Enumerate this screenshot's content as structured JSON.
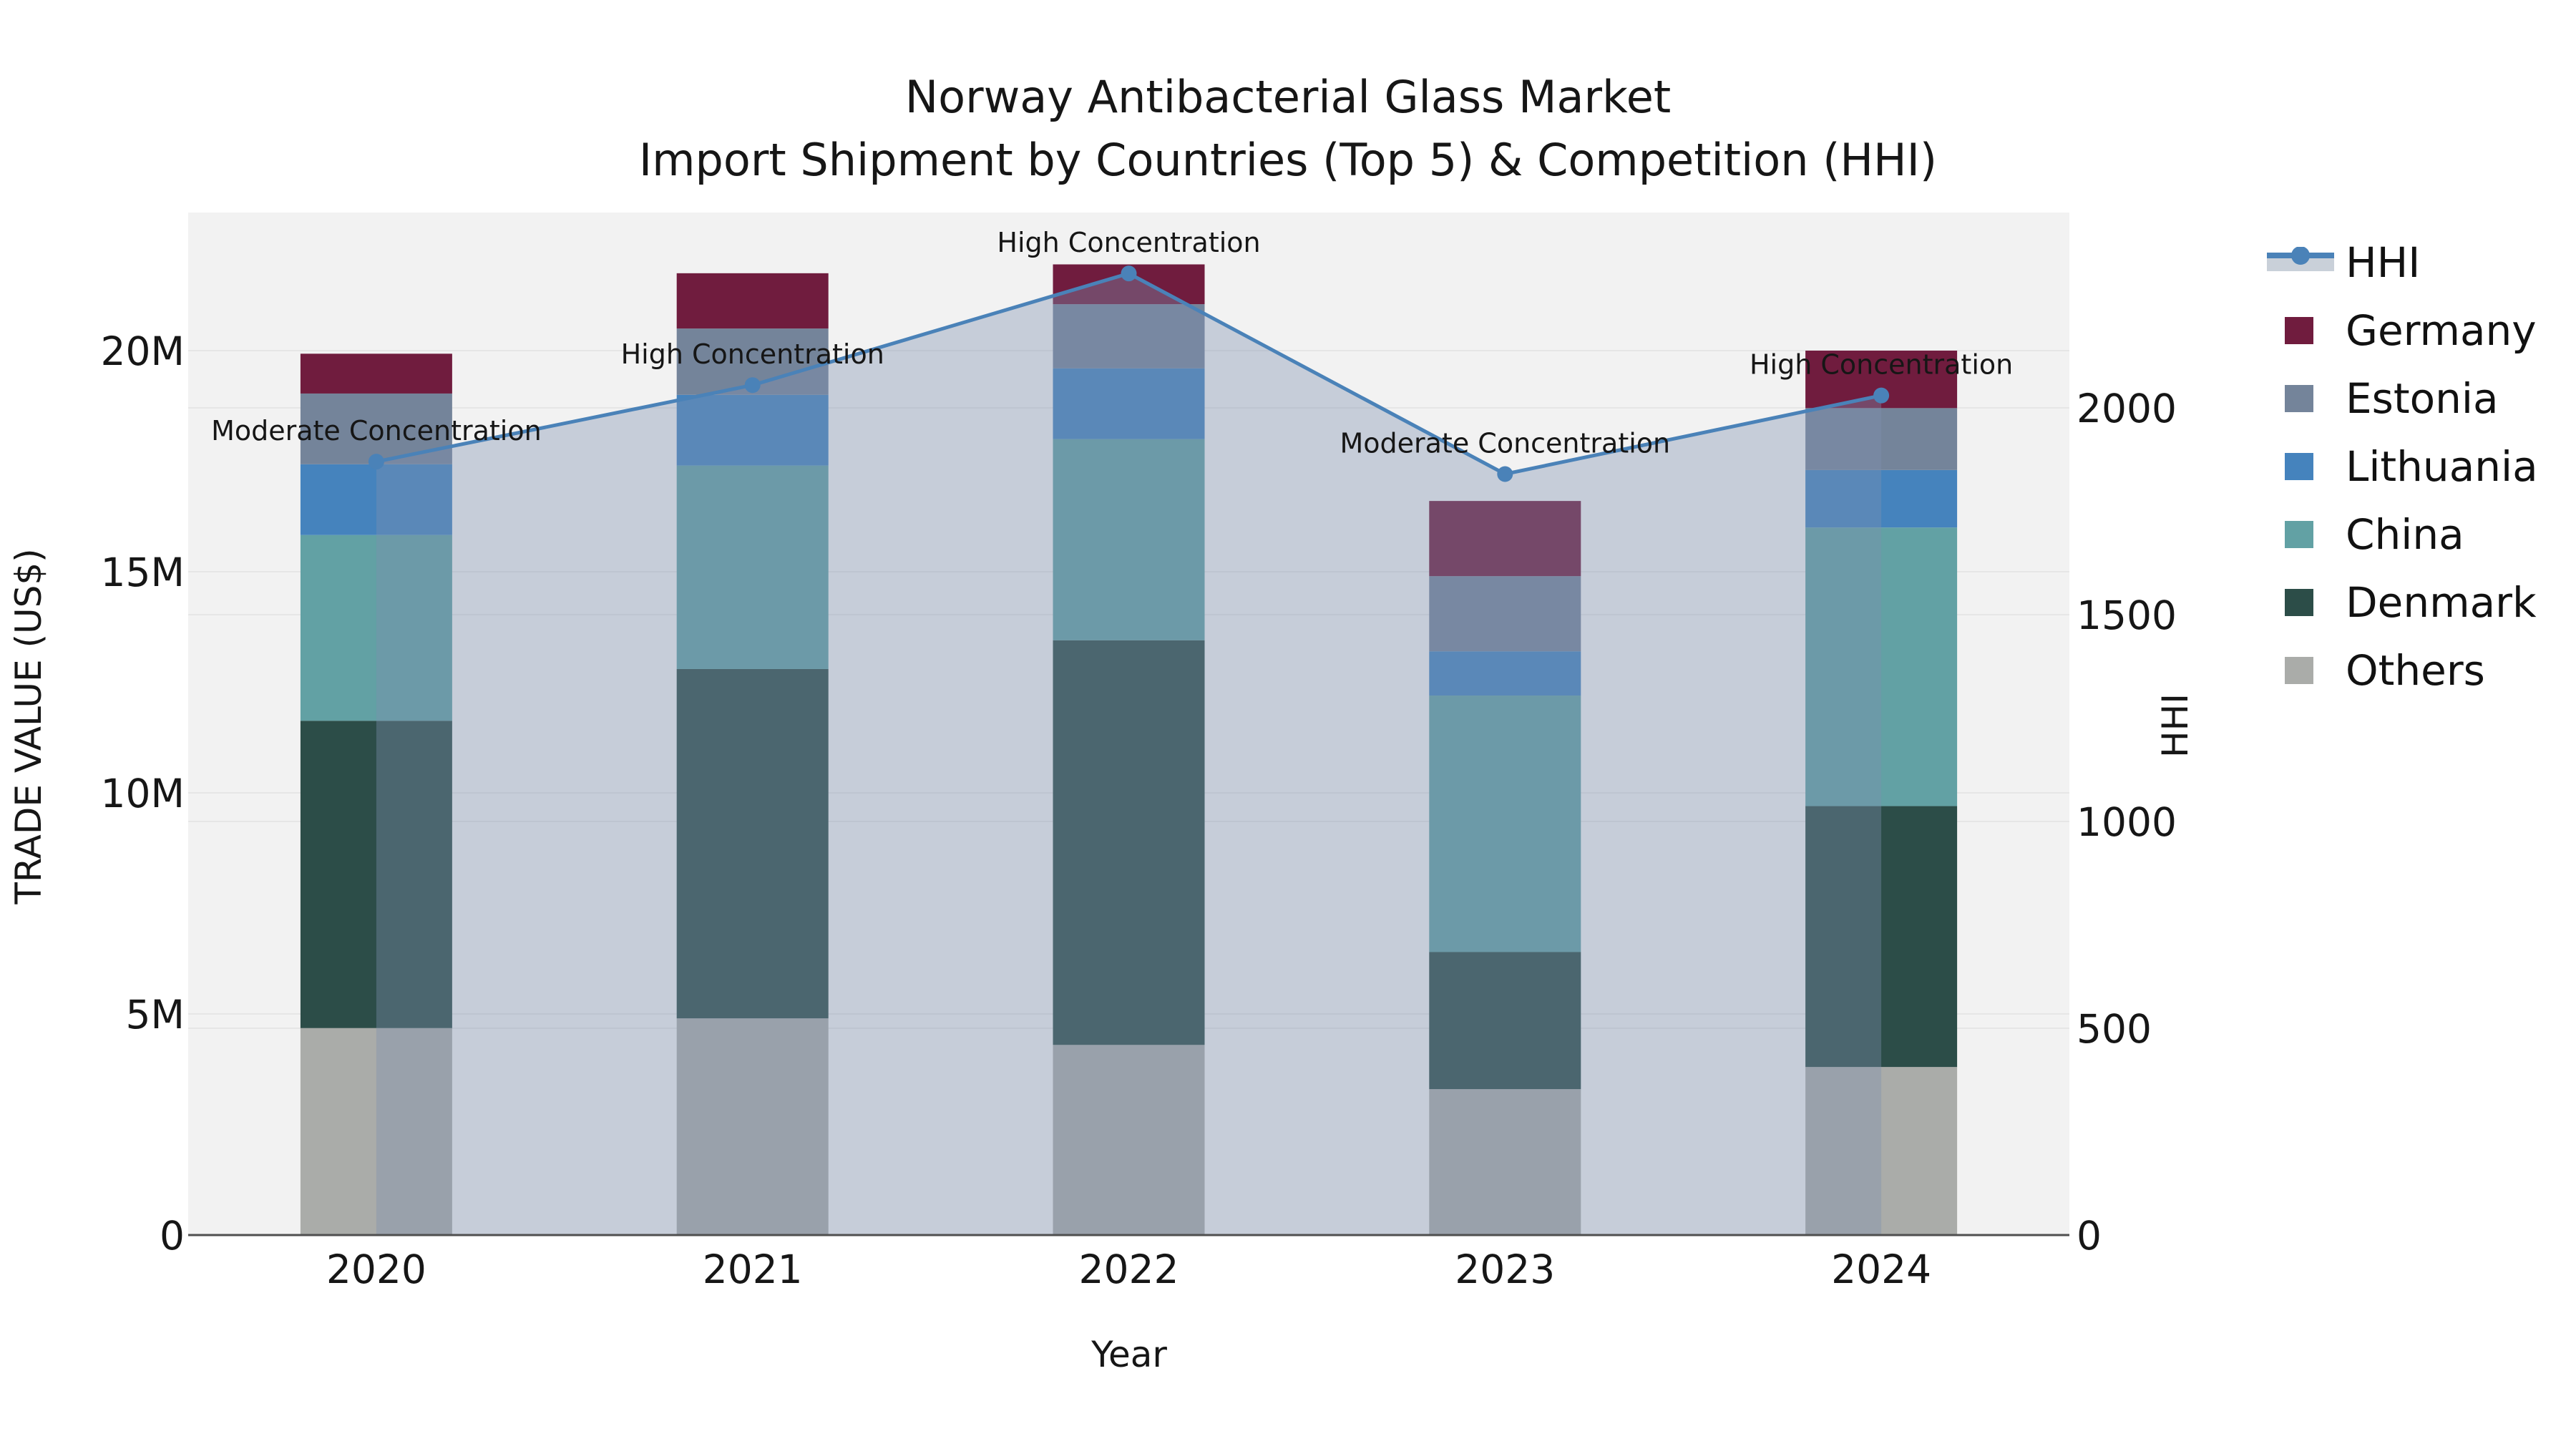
{
  "title": {
    "line1": "Norway Antibacterial Glass Market",
    "line2": "Import Shipment by Countries (Top 5) & Competition (HHI)"
  },
  "axes": {
    "left": {
      "title": "TRADE VALUE (US$)",
      "tick_values": [
        0,
        5,
        10,
        15,
        20
      ],
      "tick_labels": [
        "0",
        "5M",
        "10M",
        "15M",
        "20M"
      ],
      "unit": "million US$"
    },
    "right": {
      "title": "HHI",
      "tick_values": [
        0,
        500,
        1000,
        1500,
        2000
      ],
      "tick_labels": [
        "0",
        "500",
        "1000",
        "1500",
        "2000"
      ]
    },
    "x": {
      "title": "Year",
      "categories": [
        "2020",
        "2021",
        "2022",
        "2023",
        "2024"
      ]
    }
  },
  "legend": {
    "items": [
      {
        "label": "HHI",
        "type": "line",
        "color": "#4A82B8"
      },
      {
        "label": "Germany",
        "type": "box",
        "color": "#701C3E"
      },
      {
        "label": "Estonia",
        "type": "box",
        "color": "#74849A"
      },
      {
        "label": "Lithuania",
        "type": "box",
        "color": "#4583BD"
      },
      {
        "label": "China",
        "type": "box",
        "color": "#62A1A4"
      },
      {
        "label": "Denmark",
        "type": "box",
        "color": "#2C4D48"
      },
      {
        "label": "Others",
        "type": "box",
        "color": "#AAACA9"
      }
    ]
  },
  "chart_data": {
    "type": "bar+line",
    "title": "Norway Antibacterial Glass Market — Import Shipment by Countries (Top 5) & Competition (HHI)",
    "xlabel": "Year",
    "ylabel_left": "TRADE VALUE (US$)",
    "ylabel_right": "HHI",
    "categories": [
      "2020",
      "2021",
      "2022",
      "2023",
      "2024"
    ],
    "bar_unit": "million US$",
    "stacked": true,
    "stack_order_bottom_to_top": [
      "Others",
      "Denmark",
      "China",
      "Lithuania",
      "Estonia",
      "Germany"
    ],
    "series": [
      {
        "name": "Others",
        "color": "#AAACA9",
        "values": [
          4.68,
          4.9,
          4.3,
          3.3,
          3.8
        ]
      },
      {
        "name": "Denmark",
        "color": "#2C4D48",
        "values": [
          6.95,
          7.9,
          9.15,
          3.1,
          5.9
        ]
      },
      {
        "name": "China",
        "color": "#62A1A4",
        "values": [
          4.2,
          4.6,
          4.55,
          5.8,
          6.3
        ]
      },
      {
        "name": "Lithuania",
        "color": "#4583BD",
        "values": [
          1.6,
          1.6,
          1.6,
          1.0,
          1.3
        ]
      },
      {
        "name": "Estonia",
        "color": "#74849A",
        "values": [
          1.6,
          1.5,
          1.45,
          1.7,
          1.4
        ]
      },
      {
        "name": "Germany",
        "color": "#701C3E",
        "values": [
          0.9,
          1.25,
          0.9,
          1.7,
          1.3
        ]
      }
    ],
    "bar_totals": [
      19.93,
      21.75,
      21.95,
      16.6,
      20.0
    ],
    "line": {
      "name": "HHI",
      "color": "#4A82B8",
      "area_fill": "rgba(125,145,175,0.38)",
      "values": [
        1870,
        2055,
        2325,
        1840,
        2030
      ]
    },
    "annotations": [
      {
        "category": "2020",
        "text": "Moderate Concentration"
      },
      {
        "category": "2021",
        "text": "High Concentration"
      },
      {
        "category": "2022",
        "text": "High Concentration"
      },
      {
        "category": "2023",
        "text": "Moderate Concentration"
      },
      {
        "category": "2024",
        "text": "High Concentration"
      }
    ],
    "axis_ranges": {
      "left_max": 23.1,
      "right_max": 2470
    },
    "grid": true,
    "legend_position": "right",
    "plot_background": "#F2F2F2",
    "grid_color": "#E6E6E6",
    "axis_line_color": "#4F4F4F"
  }
}
